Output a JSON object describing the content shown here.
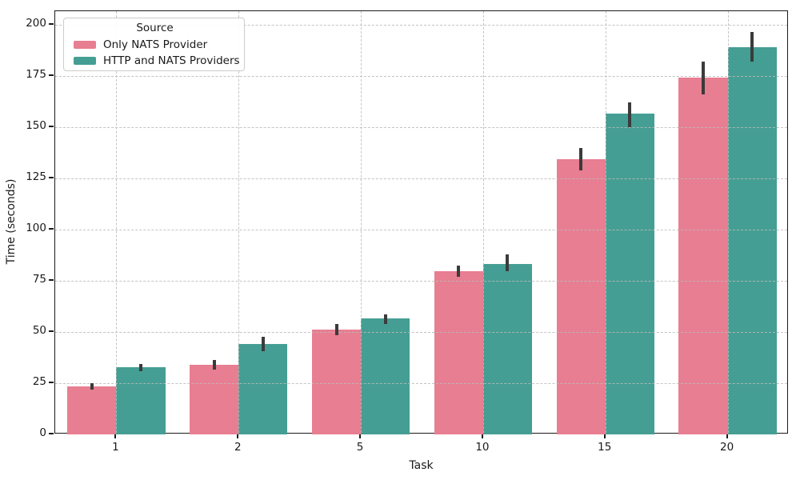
{
  "chart_data": {
    "type": "bar",
    "title": "",
    "xlabel": "Task",
    "ylabel": "Time (seconds)",
    "categories": [
      "1",
      "2",
      "5",
      "10",
      "15",
      "20"
    ],
    "series": [
      {
        "name": "Only NATS Provider",
        "color": "#e87e91",
        "values": [
          23.5,
          34,
          51,
          79.5,
          134.5,
          174
        ],
        "error_low": [
          22,
          31.5,
          48.5,
          77,
          129,
          166
        ],
        "error_high": [
          25,
          36.5,
          54,
          82.5,
          140,
          182
        ]
      },
      {
        "name": "HTTP and NATS Providers",
        "color": "#459e93",
        "values": [
          33,
          44,
          56.5,
          83,
          156.5,
          189
        ],
        "error_low": [
          31,
          40.5,
          54,
          79.5,
          150,
          182
        ],
        "error_high": [
          34.5,
          47.5,
          58.5,
          88,
          162,
          196.5
        ]
      }
    ],
    "ylim": [
      0,
      206.6
    ],
    "yticks": [
      0,
      25,
      50,
      75,
      100,
      125,
      150,
      175,
      200
    ],
    "grid": "dashed-both-axes",
    "error_bar_color": "#3b3b3b",
    "legend": {
      "title": "Source",
      "position": "upper-left"
    }
  }
}
